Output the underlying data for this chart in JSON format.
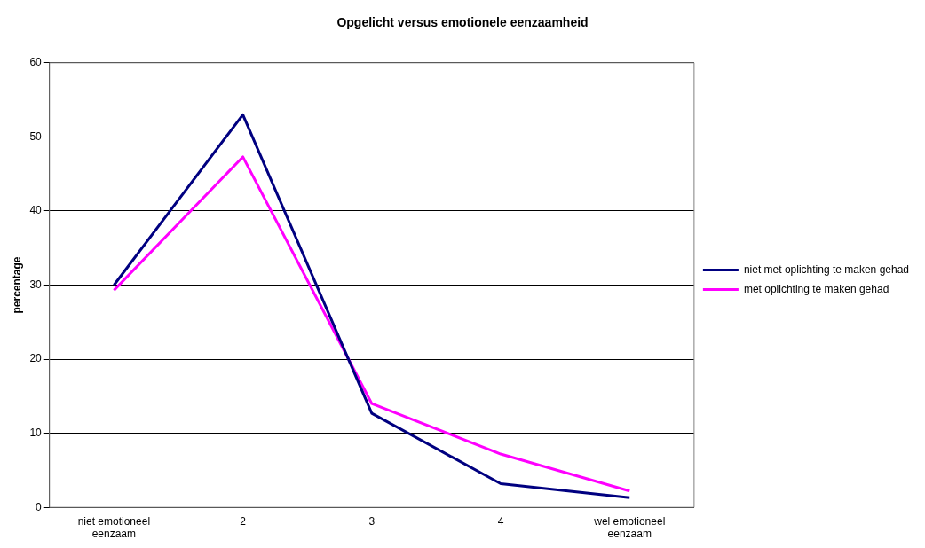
{
  "chart_data": {
    "type": "line",
    "title": "Opgelicht versus emotionele eenzaamheid",
    "ylabel": "percentage",
    "categories": [
      "niet emotioneel eenzaam",
      "2",
      "3",
      "4",
      "wel emotioneel eenzaam"
    ],
    "series": [
      {
        "name": "niet met oplichting te maken gehad",
        "color": "#000080",
        "values": [
          30,
          53,
          12.7,
          3.2,
          1.3
        ]
      },
      {
        "name": "met oplichting te maken gehad",
        "color": "#ff00ff",
        "values": [
          29.3,
          47.3,
          14,
          7.2,
          2.2
        ]
      }
    ],
    "ylim": [
      0,
      60
    ],
    "yticks": [
      0,
      10,
      20,
      30,
      40,
      50,
      60
    ],
    "grid": "y",
    "legend": "right",
    "marker": "none"
  }
}
